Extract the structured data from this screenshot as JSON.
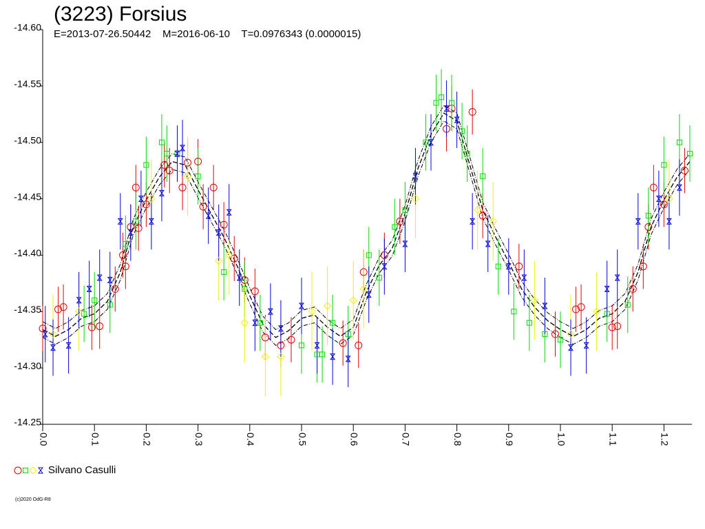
{
  "chart_data": {
    "type": "scatter",
    "title": "(3223) Forsius",
    "subtitle": "E=2013-07-26.50442    M=2016-06-10    T=0.0976343 (0.0000015)",
    "xlim": [
      0,
      1.254
    ],
    "ylim": [
      -14.25,
      -14.6
    ],
    "xticks": [
      {
        "value": 0,
        "label": "0.0"
      },
      0.1,
      0.2,
      0.3,
      0.4,
      0.5,
      0.6,
      0.7,
      0.8,
      0.9,
      {
        "value": 1,
        "label": "1.0"
      },
      1.1,
      1.2
    ],
    "yticks": [
      {
        "value": -14.6,
        "label": "-14.60"
      },
      -14.55,
      {
        "value": -14.5,
        "label": "-14.50"
      },
      -14.45,
      {
        "value": -14.4,
        "label": "-14.40"
      },
      -14.35,
      {
        "value": -14.3,
        "label": "-14.30"
      },
      -14.25
    ],
    "legend": {
      "label": "Silvano Casulli"
    },
    "series": [
      {
        "color": "#e00000",
        "marker": "circle",
        "error": 0.02,
        "x": [
          0.0,
          0.03,
          0.04,
          0.095,
          0.11,
          0.14,
          0.16,
          0.155,
          0.17,
          0.185,
          0.18,
          0.2,
          0.235,
          0.245,
          0.27,
          0.28,
          0.3,
          0.31,
          0.33,
          0.35,
          0.37,
          0.39,
          0.41,
          0.43,
          0.46,
          0.48,
          0.58,
          0.61,
          0.62,
          0.66,
          0.69,
          0.78,
          0.79,
          0.83,
          0.85,
          0.92,
          0.99,
          1.03,
          1.04,
          1.1,
          1.11,
          1.14,
          1.16,
          1.17,
          1.18,
          1.2,
          1.24
        ],
        "values": [
          -14.335,
          -14.352,
          -14.354,
          -14.336,
          -14.337,
          -14.37,
          -14.39,
          -14.4,
          -14.425,
          -14.424,
          -14.46,
          -14.445,
          -14.48,
          -14.475,
          -14.46,
          -14.482,
          -14.483,
          -14.443,
          -14.46,
          -14.427,
          -14.397,
          -14.378,
          -14.368,
          -14.327,
          -14.32,
          -14.325,
          -14.322,
          -14.32,
          -14.385,
          -14.4,
          -14.43,
          -14.512,
          -14.53,
          -14.527,
          -14.435,
          -14.39,
          -14.33,
          -14.352,
          -14.354,
          -14.336,
          -14.337,
          -14.37,
          -14.39,
          -14.425,
          -14.46,
          -14.445,
          -14.475
        ]
      },
      {
        "color": "#00d800",
        "marker": "square",
        "error": 0.025,
        "x": [
          0.08,
          0.1,
          0.13,
          0.16,
          0.18,
          0.2,
          0.23,
          0.24,
          0.26,
          0.3,
          0.35,
          0.39,
          0.42,
          0.5,
          0.53,
          0.54,
          0.56,
          0.59,
          0.63,
          0.65,
          0.68,
          0.7,
          0.74,
          0.76,
          0.77,
          0.79,
          0.81,
          0.82,
          0.85,
          0.88,
          0.91,
          0.94,
          0.97,
          1.0,
          1.09,
          1.13,
          1.17,
          1.2,
          1.23,
          1.25
        ],
        "values": [
          -14.348,
          -14.36,
          -14.356,
          -14.41,
          -14.43,
          -14.48,
          -14.5,
          -14.49,
          -14.49,
          -14.47,
          -14.385,
          -14.37,
          -14.34,
          -14.32,
          -14.312,
          -14.312,
          -14.34,
          -14.33,
          -14.4,
          -14.38,
          -14.425,
          -14.44,
          -14.5,
          -14.535,
          -14.54,
          -14.535,
          -14.51,
          -14.49,
          -14.47,
          -14.39,
          -14.35,
          -14.34,
          -14.33,
          -14.325,
          -14.348,
          -14.356,
          -14.435,
          -14.48,
          -14.5,
          -14.49
        ]
      },
      {
        "color": "#f0f000",
        "marker": "diamond",
        "error": 0.035,
        "x": [
          0.02,
          0.07,
          0.21,
          0.28,
          0.34,
          0.36,
          0.39,
          0.43,
          0.46,
          0.52,
          0.55,
          0.6,
          0.62,
          0.72,
          0.84,
          0.87,
          0.95,
          1.02,
          1.07,
          1.21
        ],
        "values": [
          -14.33,
          -14.35,
          -14.45,
          -14.47,
          -14.395,
          -14.4,
          -14.34,
          -14.31,
          -14.31,
          -14.35,
          -14.355,
          -14.36,
          -14.37,
          -14.45,
          -14.44,
          -14.43,
          -14.36,
          -14.33,
          -14.35,
          -14.45
        ]
      },
      {
        "color": "#0000e0",
        "marker": "star",
        "error": 0.025,
        "x": [
          0.005,
          0.02,
          0.05,
          0.07,
          0.09,
          0.11,
          0.13,
          0.15,
          0.17,
          0.19,
          0.21,
          0.23,
          0.26,
          0.27,
          0.32,
          0.34,
          0.36,
          0.38,
          0.41,
          0.44,
          0.46,
          0.5,
          0.53,
          0.56,
          0.59,
          0.63,
          0.66,
          0.7,
          0.72,
          0.75,
          0.78,
          0.8,
          0.83,
          0.86,
          0.9,
          0.93,
          0.97,
          1.02,
          1.05,
          1.09,
          1.11,
          1.15,
          1.19,
          1.21,
          1.23
        ],
        "values": [
          -14.33,
          -14.318,
          -14.32,
          -14.36,
          -14.37,
          -14.38,
          -14.378,
          -14.43,
          -14.42,
          -14.45,
          -14.43,
          -14.455,
          -14.49,
          -14.495,
          -14.435,
          -14.42,
          -14.438,
          -14.38,
          -14.34,
          -14.35,
          -14.335,
          -14.355,
          -14.32,
          -14.31,
          -14.308,
          -14.365,
          -14.39,
          -14.41,
          -14.47,
          -14.5,
          -14.53,
          -14.52,
          -14.43,
          -14.41,
          -14.39,
          -14.38,
          -14.355,
          -14.318,
          -14.32,
          -14.37,
          -14.38,
          -14.43,
          -14.45,
          -14.43,
          -14.46
        ]
      }
    ],
    "curve": {
      "color": "#000000",
      "error": 0.007,
      "x": [
        0,
        0.025,
        0.05,
        0.075,
        0.1,
        0.125,
        0.15,
        0.175,
        0.2,
        0.225,
        0.25,
        0.275,
        0.3,
        0.325,
        0.35,
        0.375,
        0.4,
        0.425,
        0.45,
        0.475,
        0.5,
        0.525,
        0.55,
        0.575,
        0.6,
        0.625,
        0.65,
        0.675,
        0.7,
        0.725,
        0.75,
        0.775,
        0.8,
        0.825,
        0.85,
        0.875,
        0.9,
        0.925,
        0.95,
        0.975,
        1.0,
        1.025,
        1.05,
        1.075,
        1.1,
        1.125,
        1.15,
        1.175,
        1.2,
        1.225,
        1.25
      ],
      "values": [
        -14.334,
        -14.328,
        -14.334,
        -14.344,
        -14.348,
        -14.359,
        -14.385,
        -14.425,
        -14.449,
        -14.469,
        -14.483,
        -14.48,
        -14.458,
        -14.437,
        -14.416,
        -14.391,
        -14.364,
        -14.339,
        -14.327,
        -14.333,
        -14.344,
        -14.347,
        -14.336,
        -14.328,
        -14.336,
        -14.367,
        -14.391,
        -14.406,
        -14.437,
        -14.477,
        -14.507,
        -14.526,
        -14.519,
        -14.48,
        -14.44,
        -14.416,
        -14.394,
        -14.37,
        -14.354,
        -14.342,
        -14.334,
        -14.328,
        -14.334,
        -14.344,
        -14.348,
        -14.359,
        -14.385,
        -14.425,
        -14.449,
        -14.469,
        -14.483
      ]
    }
  },
  "footer": "(c)2020 OdG-R8"
}
